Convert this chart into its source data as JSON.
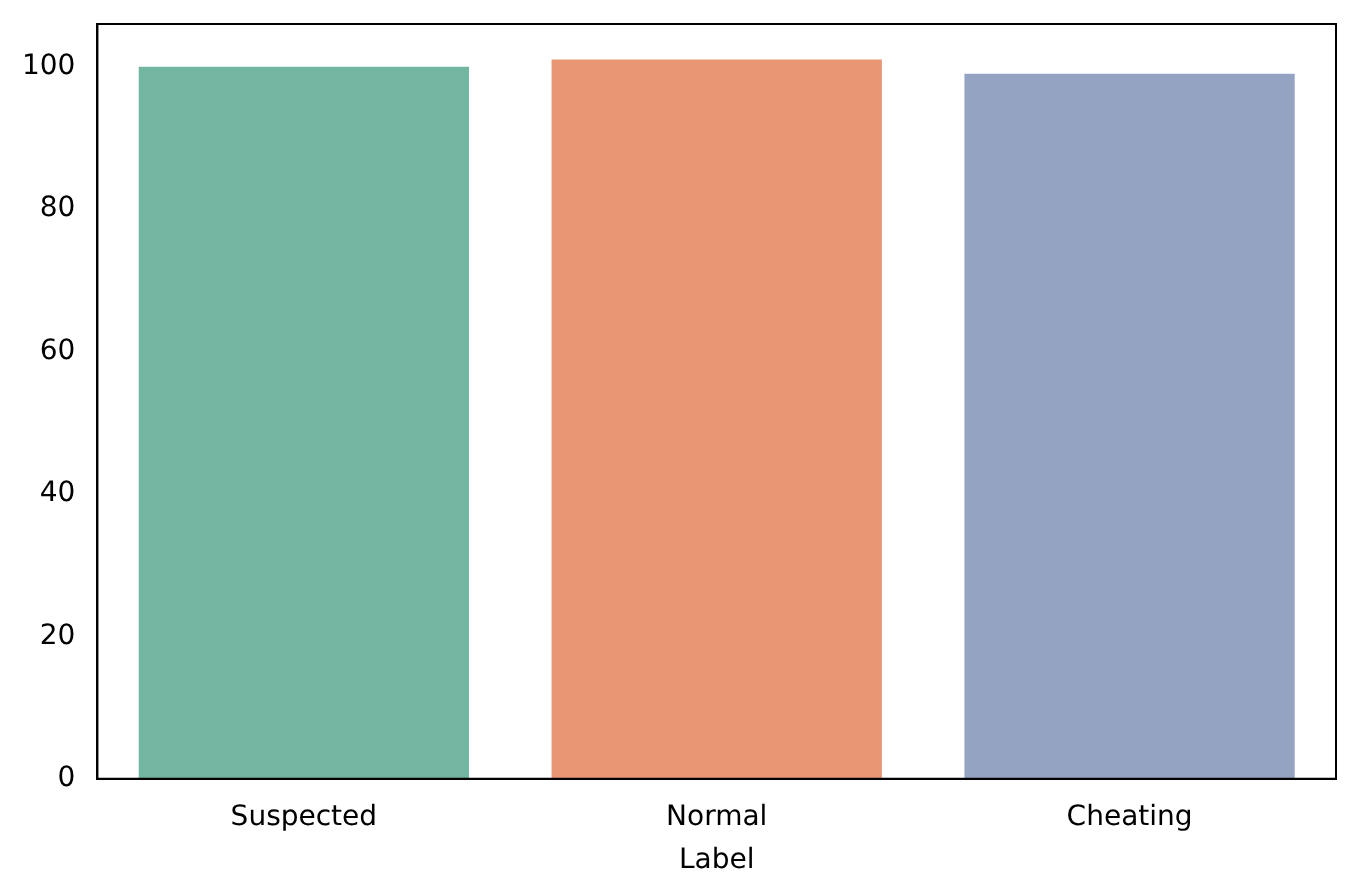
{
  "chart_data": {
    "type": "bar",
    "xlabel": "Label",
    "categories": [
      "Suspected",
      "Normal",
      "Cheating"
    ],
    "values": [
      100,
      101,
      99
    ],
    "colors": [
      "#72b6a1",
      "#e99675",
      "#95a3c3"
    ],
    "ylim": [
      0,
      106
    ],
    "yticks": [
      0,
      20,
      40,
      60,
      80,
      100
    ],
    "grid": false,
    "legend": false
  }
}
